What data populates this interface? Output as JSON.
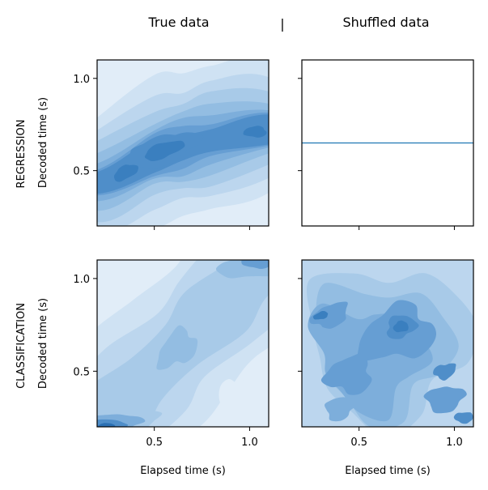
{
  "header": {
    "left_title": "True data",
    "separator": "|",
    "right_title": "Shuffled data"
  },
  "row_labels": {
    "regression": "REGRESSION",
    "classification": "CLASSIFICATION"
  },
  "axis_labels": {
    "y": "Decoded time (s)",
    "x": "Elapsed time (s)"
  },
  "colors": {
    "palette": [
      "#e1edf8",
      "#cfe2f3",
      "#bcd6ee",
      "#a8cae8",
      "#93bde2",
      "#7daedb",
      "#669ed3",
      "#4f8ec9",
      "#3a7fbf",
      "#2b70b3"
    ],
    "line": "#1f77b4",
    "axes": "#000000"
  },
  "chart_data": [
    {
      "type": "heatmap",
      "panel": "regression-true",
      "kind": "kde",
      "xlim": [
        0.2,
        1.1
      ],
      "ylim": [
        0.2,
        1.1
      ],
      "x_ticks": [
        0.5,
        1.0
      ],
      "y_ticks": [
        0.5,
        1.0
      ],
      "x_tick_labels": [
        "",
        ""
      ],
      "y_tick_labels": [
        "0.5",
        "1.0"
      ],
      "ridge": [
        [
          0.2,
          0.43
        ],
        [
          0.5,
          0.58
        ],
        [
          0.65,
          0.62
        ],
        [
          0.8,
          0.66
        ],
        [
          1.1,
          0.72
        ]
      ],
      "peaks": [
        [
          0.55,
          0.61
        ],
        [
          0.35,
          0.49
        ],
        [
          1.03,
          0.71
        ]
      ]
    },
    {
      "type": "line",
      "panel": "regression-shuffled",
      "xlim": [
        0.2,
        1.1
      ],
      "ylim": [
        0.2,
        1.1
      ],
      "x_ticks": [
        0.5,
        1.0
      ],
      "y_ticks": [
        0.5,
        1.0
      ],
      "x_tick_labels": [
        "",
        ""
      ],
      "y_tick_labels": [
        "",
        ""
      ],
      "x": [
        0.2,
        1.1
      ],
      "y": [
        0.65,
        0.65
      ]
    },
    {
      "type": "heatmap",
      "panel": "classification-true",
      "kind": "kde",
      "xlim": [
        0.2,
        1.1
      ],
      "ylim": [
        0.2,
        1.1
      ],
      "x_ticks": [
        0.5,
        1.0
      ],
      "y_ticks": [
        0.5,
        1.0
      ],
      "x_tick_labels": [
        "0.5",
        "1.0"
      ],
      "y_tick_labels": [
        "0.5",
        "1.0"
      ],
      "peaks": [
        [
          0.28,
          0.22
        ],
        [
          1.05,
          1.08
        ],
        [
          0.6,
          0.6
        ]
      ]
    },
    {
      "type": "heatmap",
      "panel": "classification-shuffled",
      "kind": "kde",
      "xlim": [
        0.2,
        1.1
      ],
      "ylim": [
        0.2,
        1.1
      ],
      "x_ticks": [
        0.5,
        1.0
      ],
      "y_ticks": [
        0.5,
        1.0
      ],
      "x_tick_labels": [
        "0.5",
        "1.0"
      ],
      "y_tick_labels": [
        "",
        ""
      ],
      "peaks": [
        [
          0.72,
          0.74
        ],
        [
          0.3,
          0.8
        ],
        [
          0.45,
          0.45
        ],
        [
          0.95,
          0.3
        ]
      ]
    }
  ]
}
